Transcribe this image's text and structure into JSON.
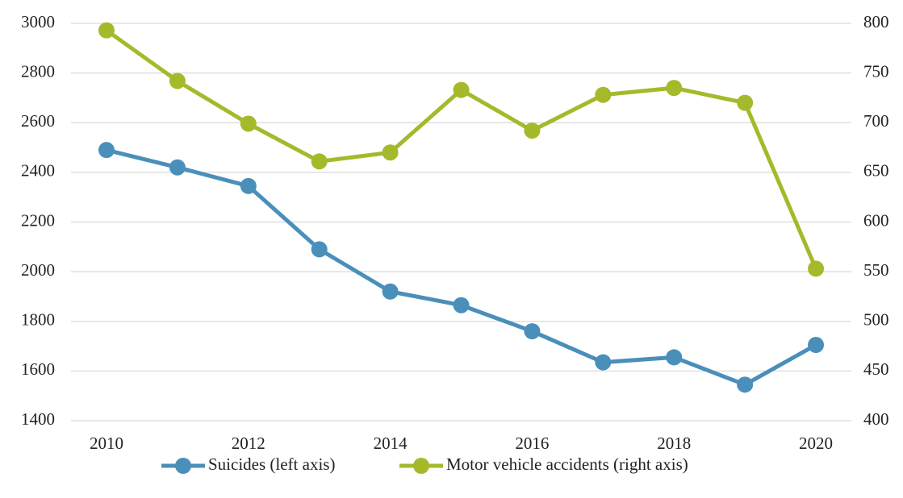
{
  "chart_data": {
    "type": "line",
    "x": [
      2010,
      2011,
      2012,
      2013,
      2014,
      2015,
      2016,
      2017,
      2018,
      2019,
      2020
    ],
    "xlim": [
      2009.5,
      2020.5
    ],
    "xticks": [
      2010,
      2012,
      2014,
      2016,
      2018,
      2020
    ],
    "ylim": [
      1400,
      3000
    ],
    "yticks": [
      1400,
      1600,
      1800,
      2000,
      2200,
      2400,
      2600,
      2800,
      3000
    ],
    "y2lim": [
      400,
      800
    ],
    "y2ticks": [
      400,
      450,
      500,
      550,
      600,
      650,
      700,
      750,
      800
    ],
    "grid": true,
    "legend": "bottom",
    "series": [
      {
        "name": "Suicides (left axis)",
        "color": "#4a8fba",
        "values": [
          2490,
          2420,
          2345,
          2090,
          1920,
          1865,
          1760,
          1635,
          1655,
          1545,
          1705
        ]
      },
      {
        "name": "Motor vehicle accidents (right axis)",
        "color": "#a6b92b",
        "axis": "y2",
        "values": [
          793,
          742,
          699,
          661,
          670,
          733,
          692,
          728,
          735,
          720,
          553
        ]
      }
    ]
  }
}
